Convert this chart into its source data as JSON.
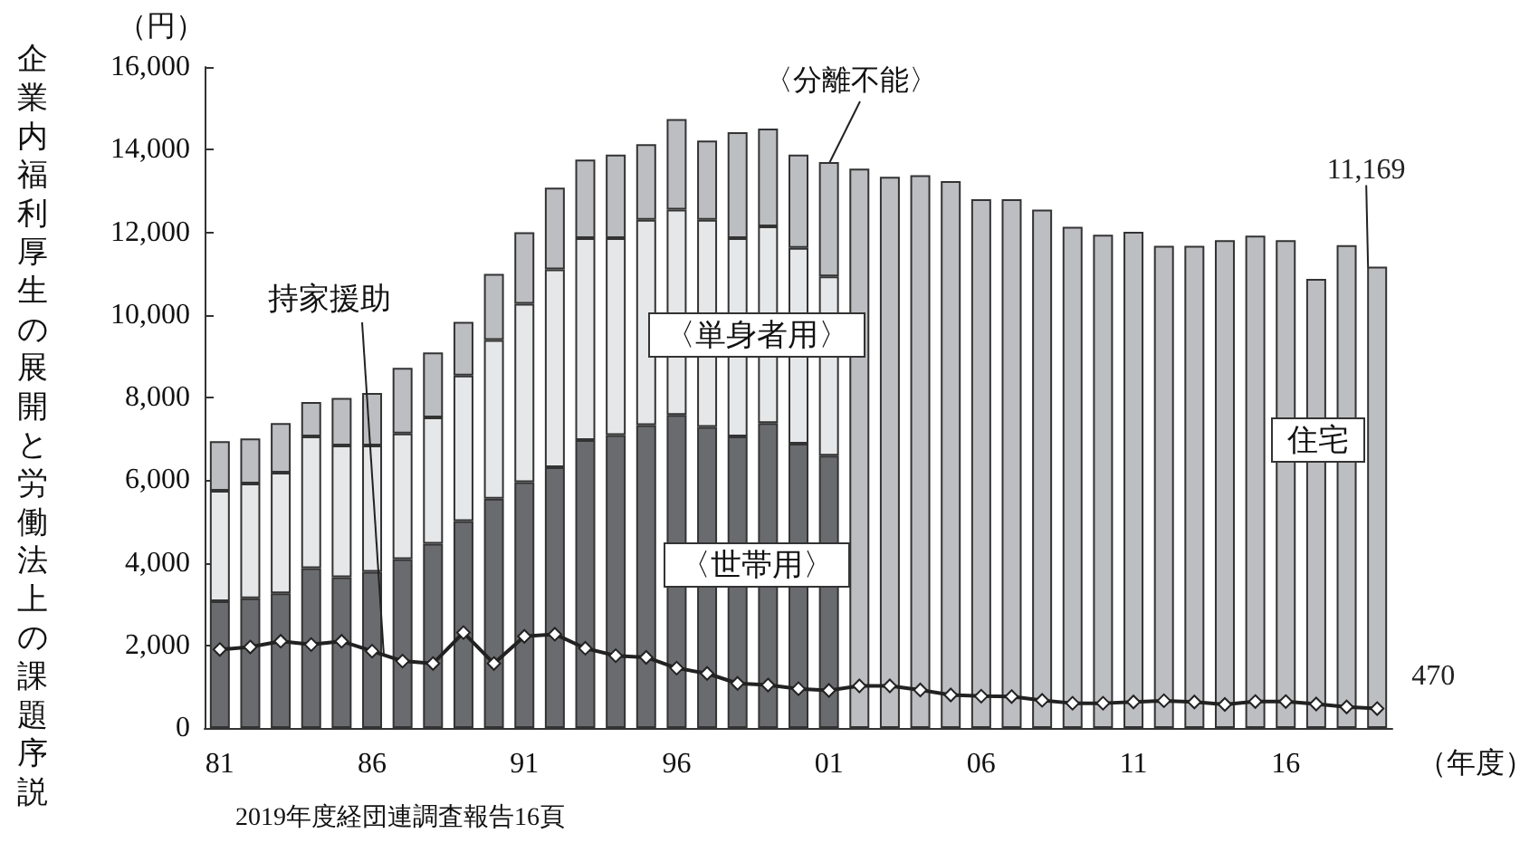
{
  "chart_data": {
    "type": "bar",
    "stacked": true,
    "ylabel": "（円）",
    "xlabel": "（年度）",
    "categories": [
      "81",
      null,
      null,
      null,
      null,
      "86",
      null,
      null,
      null,
      null,
      "91",
      null,
      null,
      null,
      null,
      "96",
      null,
      null,
      null,
      null,
      "01",
      null,
      null,
      null,
      null,
      "06",
      null,
      null,
      null,
      null,
      "11",
      null,
      null,
      null,
      null,
      "16",
      null,
      null,
      null
    ],
    "series": [
      {
        "name": "〈世帯用〉",
        "color": "#6a6b6f",
        "values": [
          3070,
          3140,
          3260,
          3870,
          3650,
          3780,
          4090,
          4460,
          5010,
          5550,
          5950,
          6310,
          6970,
          7090,
          7330,
          7580,
          7290,
          7060,
          7380,
          6880,
          6590,
          null,
          null,
          null,
          null,
          null,
          null,
          null,
          null,
          null,
          null,
          null,
          null,
          null,
          null,
          null,
          null,
          null,
          null
        ]
      },
      {
        "name": "〈単身者用〉",
        "color": "#e6e7e9",
        "values": [
          2670,
          2780,
          2920,
          3190,
          3190,
          3060,
          3040,
          3060,
          3520,
          3840,
          4320,
          4790,
          4890,
          4770,
          4970,
          4970,
          5010,
          4800,
          4760,
          4740,
          4340,
          null,
          null,
          null,
          null,
          null,
          null,
          null,
          null,
          null,
          null,
          null,
          null,
          null,
          null,
          null,
          null,
          null,
          null
        ]
      },
      {
        "color": "#bdbec2",
        "values": [
          1200,
          1090,
          1200,
          830,
          1150,
          1270,
          1590,
          1570,
          1300,
          1600,
          1730,
          1980,
          1900,
          2020,
          1830,
          2190,
          1920,
          2560,
          2370,
          2260,
          2770,
          13540,
          13340,
          13380,
          13240,
          12800,
          12800,
          12550,
          12130,
          11940,
          12010,
          11670,
          11670,
          11810,
          11920,
          11810,
          10870,
          11690,
          11169
        ],
        "value_labels": [
          null,
          null,
          null,
          null,
          null,
          null,
          null,
          null,
          null,
          null,
          null,
          null,
          null,
          null,
          null,
          null,
          null,
          null,
          null,
          null,
          null,
          null,
          null,
          null,
          null,
          null,
          null,
          null,
          null,
          null,
          null,
          null,
          null,
          null,
          null,
          null,
          null,
          null,
          "11,169"
        ]
      },
      {
        "name": "持家援助",
        "type": "line",
        "color": "#222222",
        "values": [
          1900,
          1960,
          2100,
          2020,
          2100,
          1860,
          1620,
          1560,
          2310,
          1560,
          2220,
          2270,
          1930,
          1750,
          1710,
          1450,
          1320,
          1080,
          1040,
          950,
          910,
          1020,
          1020,
          920,
          800,
          770,
          760,
          670,
          600,
          600,
          630,
          660,
          630,
          570,
          640,
          640,
          580,
          510,
          470
        ],
        "value_labels": [
          null,
          null,
          null,
          null,
          null,
          null,
          null,
          null,
          null,
          null,
          null,
          null,
          null,
          null,
          null,
          null,
          null,
          null,
          null,
          null,
          null,
          null,
          null,
          null,
          null,
          null,
          null,
          null,
          null,
          null,
          null,
          null,
          null,
          null,
          null,
          null,
          null,
          null,
          "470"
        ]
      }
    ],
    "ylim": [
      0,
      16000
    ],
    "yticks": [
      0,
      {
        "value": 2000,
        "label": "2,000"
      },
      {
        "value": 4000,
        "label": "4,000"
      },
      {
        "value": 6000,
        "label": "6,000"
      },
      {
        "value": 8000,
        "label": "8,000"
      },
      {
        "value": 10000,
        "label": "10,000"
      },
      {
        "value": 12000,
        "label": "12,000"
      },
      {
        "value": 14000,
        "label": "14,000"
      },
      {
        "value": 16000,
        "label": "16,000"
      }
    ],
    "marker": "diamond",
    "line_style": "solid",
    "annotations": [
      {
        "text": "〈分離不能〉",
        "y": 13540
      },
      "住宅",
      "企業内福利厚生の展開と労働法上の課題序説",
      "2019年度経団連調査報告16頁"
    ]
  }
}
